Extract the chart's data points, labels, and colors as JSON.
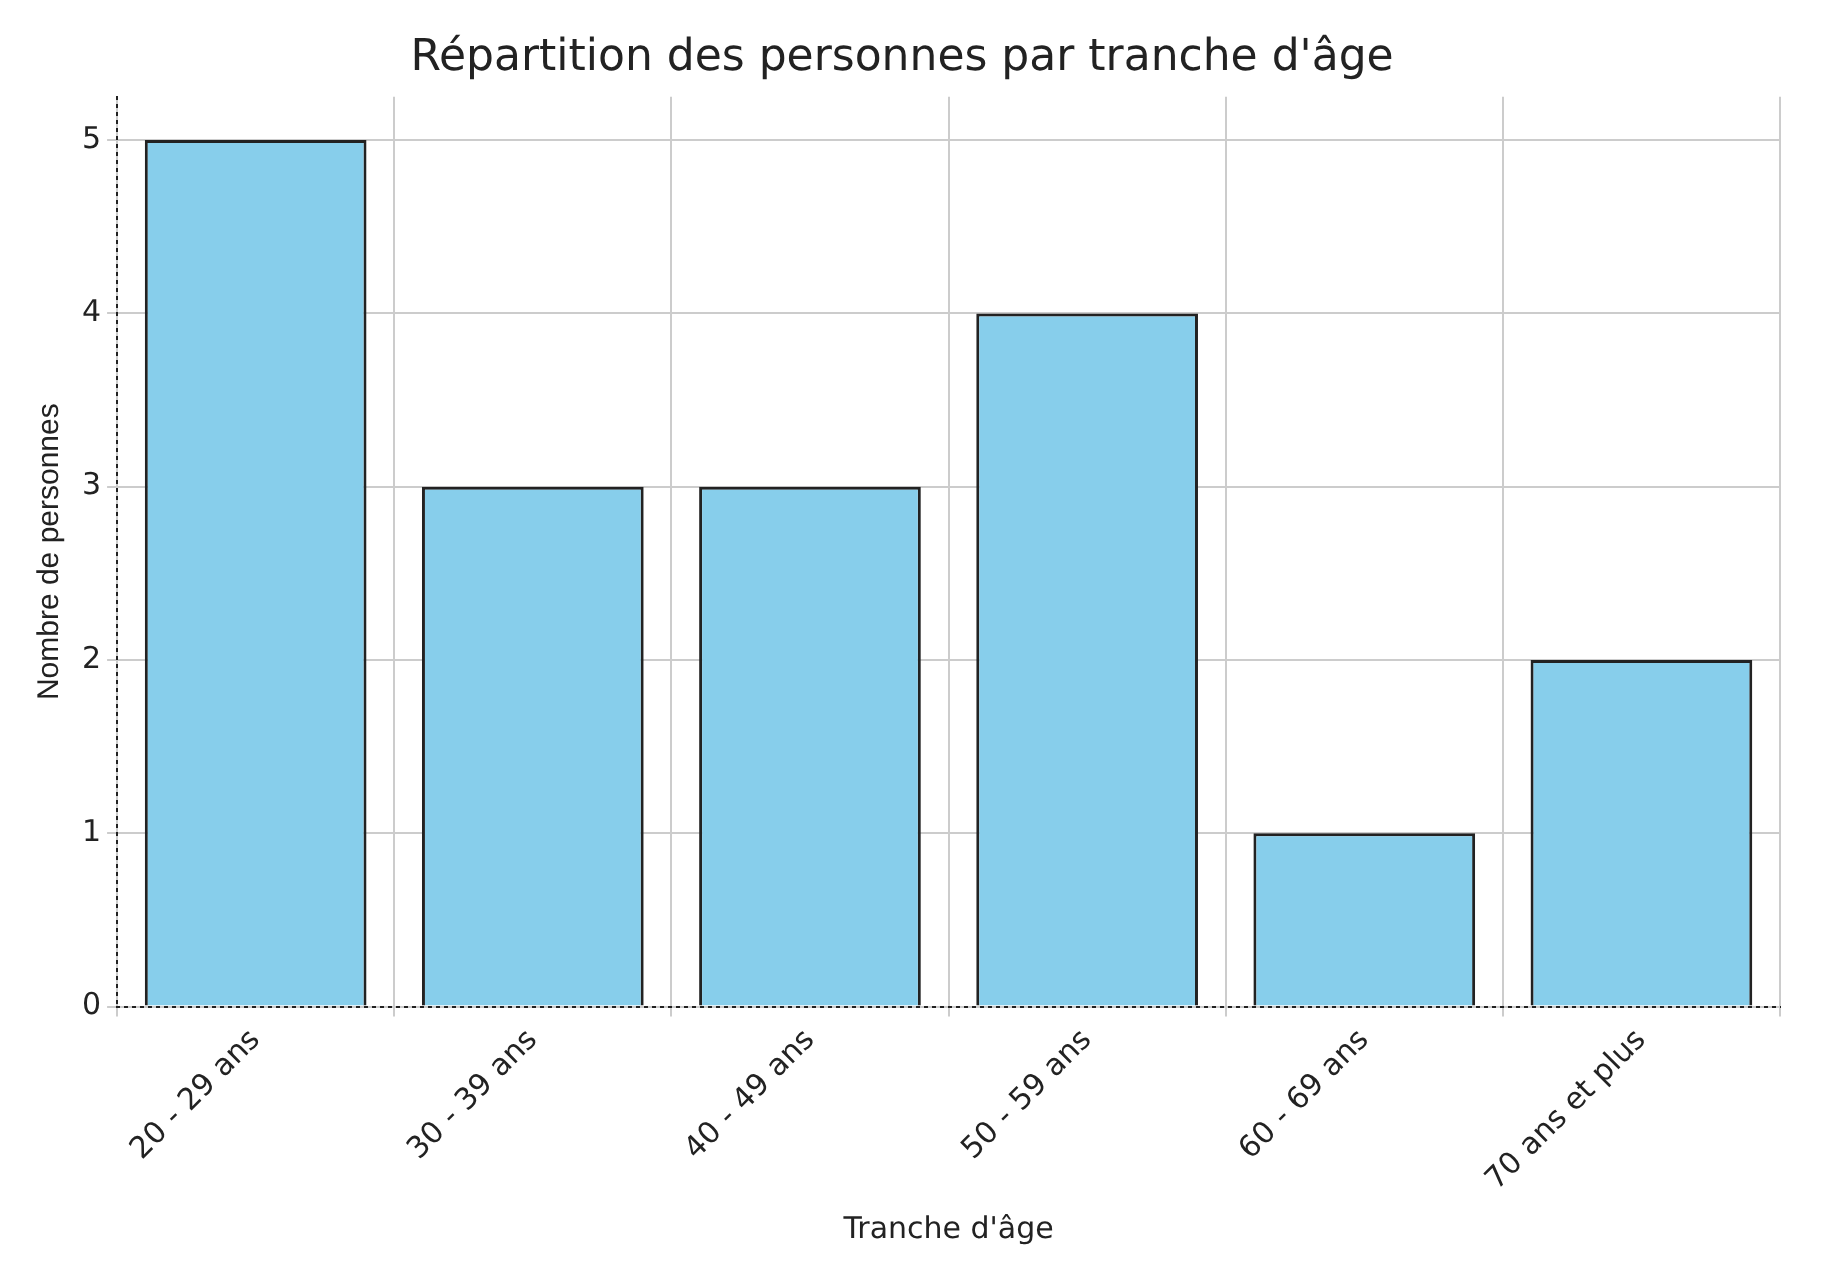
{
  "chart_data": {
    "type": "bar",
    "title": "Répartition des personnes par tranche d'âge",
    "xlabel": "Tranche d'âge",
    "ylabel": "Nombre de personnes",
    "categories": [
      "20 - 29 ans",
      "30 - 39 ans",
      "40 - 49 ans",
      "50 - 59 ans",
      "60 - 69 ans",
      "70 ans et plus"
    ],
    "values": [
      5,
      3,
      3,
      4,
      1,
      2
    ],
    "color": "#87ceeb",
    "ylim": [
      0,
      5.25
    ],
    "yticks": [
      0,
      1,
      2,
      3,
      4,
      5
    ],
    "grid": true
  }
}
